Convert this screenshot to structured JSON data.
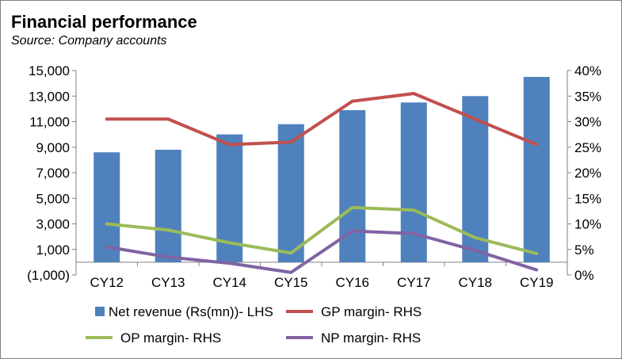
{
  "chart_data": {
    "type": "bar+line",
    "title": "Financial performance",
    "subtitle": "Source: Company accounts",
    "categories": [
      "CY12",
      "CY13",
      "CY14",
      "CY15",
      "CY16",
      "CY17",
      "CY18",
      "CY19"
    ],
    "left_axis": {
      "ylim": [
        -1000,
        15000
      ],
      "ticks": [
        -1000,
        1000,
        3000,
        5000,
        7000,
        9000,
        11000,
        13000,
        15000
      ],
      "tick_labels": [
        "(1,000)",
        "1,000",
        "3,000",
        "5,000",
        "7,000",
        "9,000",
        "11,000",
        "13,000",
        "15,000"
      ]
    },
    "right_axis": {
      "ylim": [
        0,
        40
      ],
      "ticks": [
        0,
        5,
        10,
        15,
        20,
        25,
        30,
        35,
        40
      ],
      "tick_labels": [
        "0%",
        "5%",
        "10%",
        "15%",
        "20%",
        "25%",
        "30%",
        "35%",
        "40%"
      ]
    },
    "bar_series": {
      "name": "Net revenue (Rs(mn))- LHS",
      "color": "#4F81BD",
      "values": [
        8600,
        8800,
        10000,
        10800,
        11900,
        12500,
        13000,
        14500
      ]
    },
    "line_series": [
      {
        "name": "GP margin- RHS",
        "color": "#C0504D",
        "values": [
          30.5,
          30.5,
          25.5,
          26.0,
          34.0,
          35.5,
          30.5,
          25.5
        ]
      },
      {
        "name": "OP margin- RHS",
        "color": "#9BBB59",
        "values": [
          10.0,
          8.8,
          6.3,
          4.3,
          13.2,
          12.7,
          7.3,
          4.2
        ]
      },
      {
        "name": "NP margin- RHS",
        "color": "#8064A2",
        "values": [
          5.5,
          3.5,
          2.3,
          0.5,
          8.6,
          8.1,
          4.8,
          1.0
        ]
      }
    ],
    "legend_position": "bottom",
    "grid": false
  }
}
